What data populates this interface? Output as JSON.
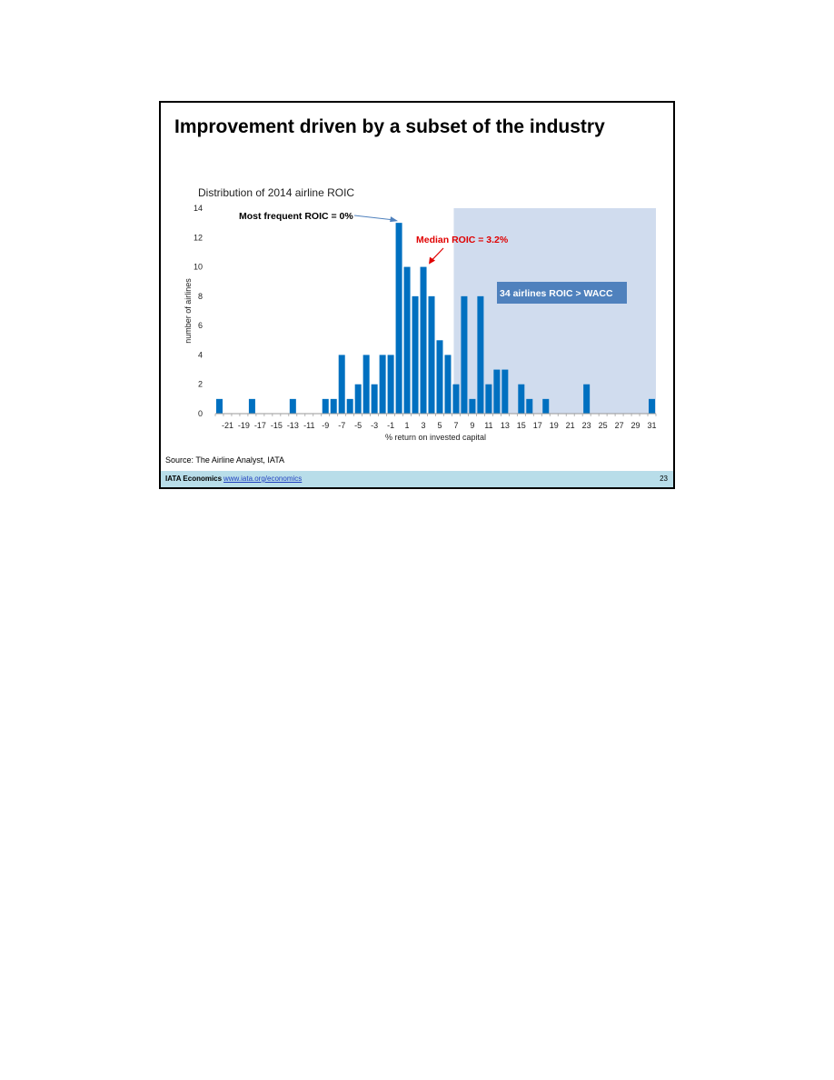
{
  "slide": {
    "title": "Improvement driven by a subset of the industry",
    "source": "Source: The Airline Analyst, IATA",
    "footer_org": "IATA Economics",
    "footer_link": "www.iata.org/economics",
    "page_number": "23"
  },
  "colors": {
    "bar": "#0070c0",
    "highlight_region": "#d0dcee",
    "median_annotation": "#e00000",
    "callout_box": "#4f81bd",
    "footer_band": "#b8dde9"
  },
  "chart_data": {
    "type": "bar",
    "title": "Distribution of 2014 airline ROIC",
    "xlabel": "% return on invested capital",
    "ylabel": "number of airlines",
    "ylim": [
      0,
      14
    ],
    "y_ticks": [
      0,
      2,
      4,
      6,
      8,
      10,
      12,
      14
    ],
    "categories": [
      -22,
      -21,
      -20,
      -19,
      -18,
      -17,
      -16,
      -15,
      -14,
      -13,
      -12,
      -11,
      -10,
      -9,
      -8,
      -7,
      -6,
      -5,
      -4,
      -3,
      -2,
      -1,
      0,
      1,
      2,
      3,
      4,
      5,
      6,
      7,
      8,
      9,
      10,
      11,
      12,
      13,
      14,
      15,
      16,
      17,
      18,
      19,
      20,
      21,
      22,
      23,
      24,
      25,
      26,
      27,
      28,
      29,
      30,
      31
    ],
    "x_tick_labels": [
      "-21",
      "-19",
      "-17",
      "-15",
      "-13",
      "-11",
      "-9",
      "-7",
      "-5",
      "-3",
      "-1",
      "1",
      "3",
      "5",
      "7",
      "9",
      "11",
      "13",
      "15",
      "17",
      "19",
      "21",
      "23",
      "25",
      "27",
      "29",
      "31"
    ],
    "values": [
      1,
      0,
      0,
      0,
      1,
      0,
      0,
      0,
      0,
      1,
      0,
      0,
      0,
      1,
      1,
      4,
      1,
      2,
      4,
      2,
      4,
      4,
      13,
      10,
      8,
      10,
      8,
      5,
      4,
      2,
      8,
      1,
      8,
      2,
      3,
      3,
      0,
      2,
      1,
      0,
      1,
      0,
      0,
      0,
      0,
      2,
      0,
      0,
      0,
      0,
      0,
      0,
      0,
      1
    ],
    "shaded_region": {
      "from": 7,
      "to": 31,
      "label": "34 airlines ROIC > WACC"
    },
    "annotations": [
      {
        "text": "Most frequent ROIC = 0%",
        "x": 0,
        "y": 13
      },
      {
        "text": "Median ROIC = 3.2%",
        "x": 3,
        "y": 10
      }
    ]
  }
}
